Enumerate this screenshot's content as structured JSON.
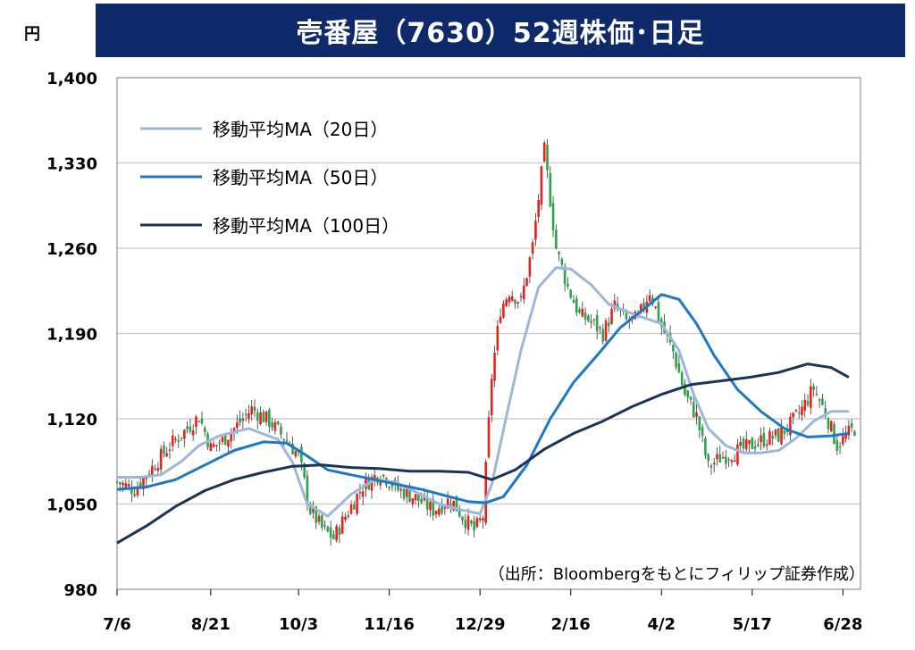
{
  "header": {
    "title": "壱番屋（7630）52週株価･日足",
    "unit": "円"
  },
  "source_note": "（出所：Bloombergをもとにフィリップ証券作成）",
  "colors": {
    "title_bg": "#0f2a6b",
    "up": "#e8221b",
    "down": "#2aa54a",
    "ma20": "#9db7d9",
    "ma50": "#1f78c1",
    "ma100": "#1b3358",
    "grid": "#c8c8c8"
  },
  "chart_data": {
    "type": "line",
    "title": "壱番屋（7630）52週株価･日足",
    "ylabel": "円",
    "ylim": [
      980,
      1400
    ],
    "yticks": [
      "1,400",
      "1,330",
      "1,260",
      "1,190",
      "1,120",
      "1,050",
      "980"
    ],
    "ytick_values": [
      1400,
      1330,
      1260,
      1190,
      1120,
      1050,
      980
    ],
    "xlim": [
      0,
      254
    ],
    "xticks": [
      "7/6",
      "8/21",
      "10/3",
      "11/16",
      "12/29",
      "2/16",
      "4/2",
      "5/17",
      "6/28"
    ],
    "xtick_positions": [
      0,
      32,
      62,
      93,
      124,
      155,
      186,
      217,
      248
    ],
    "grid": true,
    "legend_position": "top-left",
    "series": [
      {
        "name": "移動平均MA（20日）",
        "key": "ma20",
        "x": [
          0,
          8,
          15,
          22,
          28,
          35,
          45,
          55,
          60,
          65,
          72,
          80,
          88,
          95,
          102,
          110,
          118,
          124,
          128,
          133,
          138,
          144,
          150,
          155,
          162,
          168,
          174,
          180,
          186,
          192,
          197,
          202,
          208,
          214,
          220,
          226,
          232,
          238,
          244,
          250
        ],
        "values": [
          1072,
          1072,
          1074,
          1085,
          1098,
          1106,
          1112,
          1103,
          1084,
          1050,
          1040,
          1058,
          1070,
          1068,
          1060,
          1050,
          1045,
          1042,
          1066,
          1122,
          1176,
          1228,
          1244,
          1243,
          1230,
          1214,
          1208,
          1203,
          1198,
          1176,
          1140,
          1112,
          1098,
          1092,
          1092,
          1094,
          1104,
          1118,
          1126,
          1126
        ]
      },
      {
        "name": "移動平均MA（50日）",
        "key": "ma50",
        "x": [
          0,
          10,
          20,
          30,
          40,
          50,
          58,
          64,
          72,
          80,
          88,
          96,
          104,
          112,
          120,
          126,
          132,
          140,
          148,
          156,
          164,
          172,
          180,
          186,
          192,
          198,
          204,
          212,
          220,
          228,
          236,
          244,
          250
        ],
        "values": [
          1062,
          1064,
          1070,
          1082,
          1094,
          1101,
          1100,
          1091,
          1078,
          1074,
          1070,
          1066,
          1062,
          1057,
          1052,
          1051,
          1056,
          1082,
          1120,
          1150,
          1172,
          1195,
          1210,
          1222,
          1218,
          1198,
          1172,
          1144,
          1126,
          1112,
          1105,
          1106,
          1108
        ]
      },
      {
        "name": "移動平均MA（100日）",
        "key": "ma100",
        "x": [
          0,
          10,
          20,
          30,
          40,
          50,
          60,
          70,
          80,
          90,
          100,
          110,
          120,
          128,
          136,
          146,
          156,
          166,
          176,
          186,
          196,
          206,
          216,
          226,
          236,
          244,
          250
        ],
        "values": [
          1018,
          1032,
          1048,
          1061,
          1070,
          1076,
          1081,
          1082,
          1080,
          1079,
          1077,
          1077,
          1076,
          1070,
          1078,
          1095,
          1108,
          1118,
          1130,
          1140,
          1148,
          1151,
          1154,
          1158,
          1165,
          1162,
          1154
        ]
      }
    ]
  }
}
